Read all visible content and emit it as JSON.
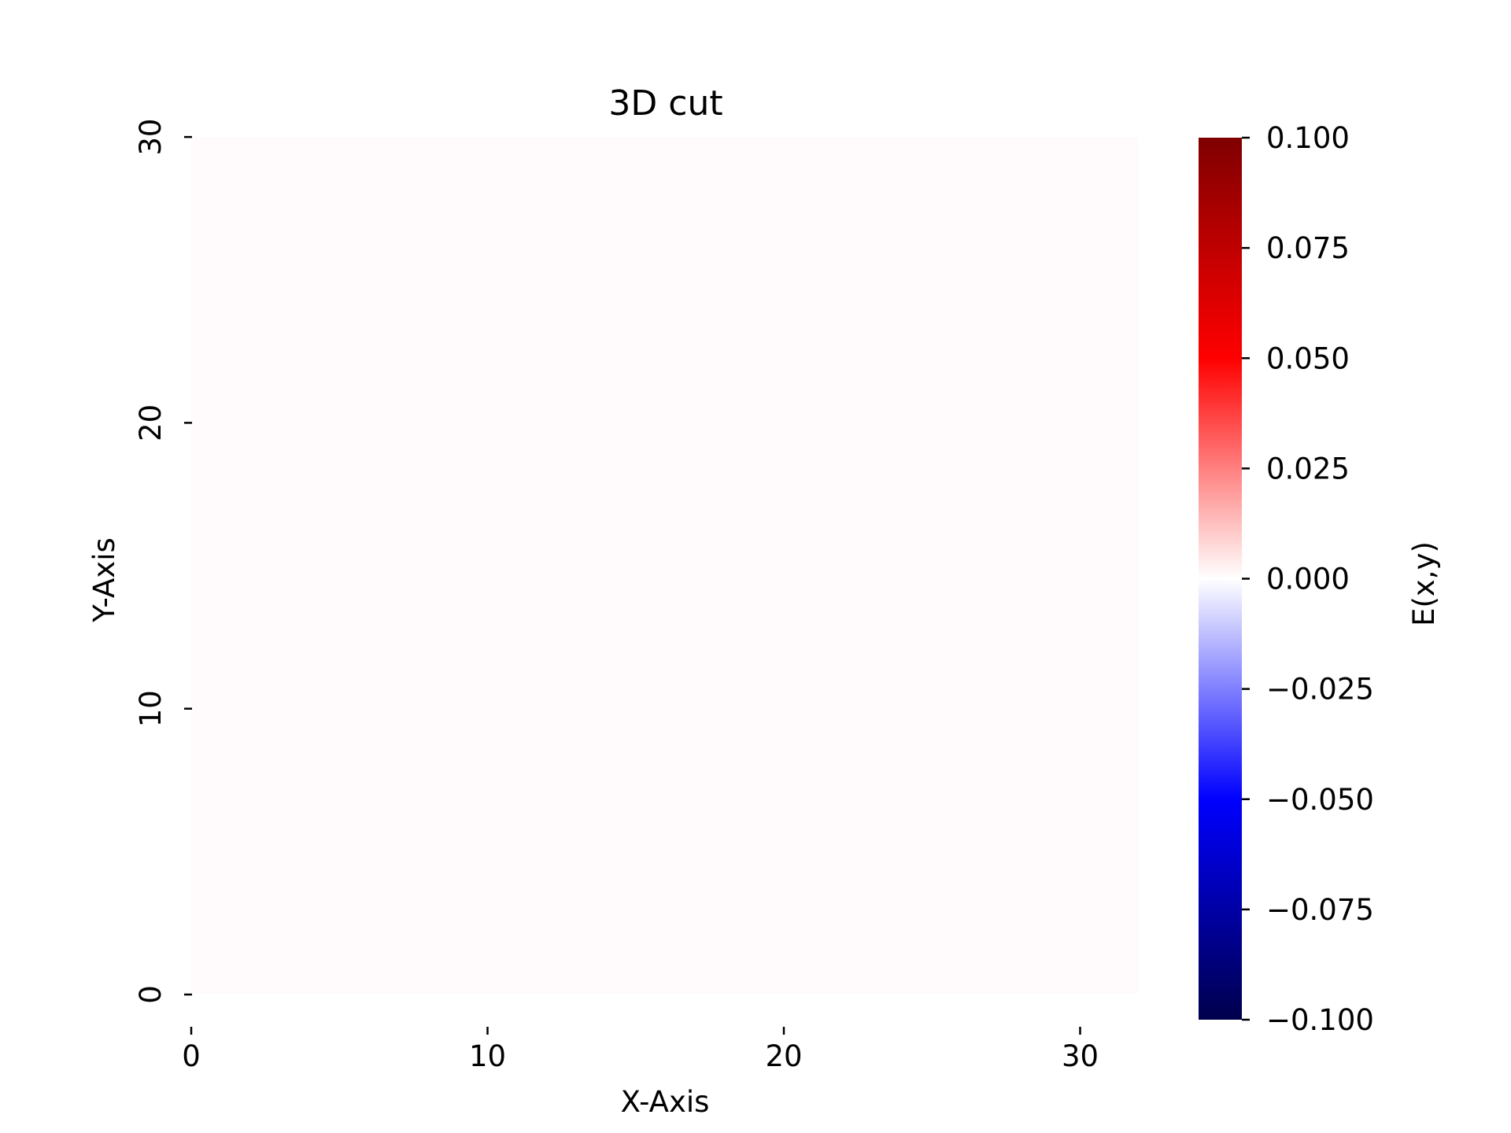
{
  "chart_data": {
    "type": "heatmap",
    "title": "3D cut",
    "xlabel": "X-Axis",
    "ylabel": "Y-Axis",
    "xlim": [
      0,
      32
    ],
    "ylim": [
      0,
      30
    ],
    "x_ticks": [
      "0",
      "10",
      "20",
      "30"
    ],
    "y_ticks": [
      "0",
      "10",
      "20",
      "30"
    ],
    "z_uniform_value": 0.0,
    "grid": false,
    "colorbar": {
      "label": "E(x,y)",
      "colormap": "seismic",
      "range": [
        -0.1,
        0.1
      ],
      "ticks": [
        "0.100",
        "0.075",
        "0.050",
        "0.025",
        "0.000",
        "−0.025",
        "−0.050",
        "−0.075",
        "−0.100"
      ],
      "colors": [
        "#00004c",
        "#0000ff",
        "#ffffff",
        "#ff0000",
        "#7f0000"
      ]
    },
    "field_color": "#fffbfc"
  }
}
